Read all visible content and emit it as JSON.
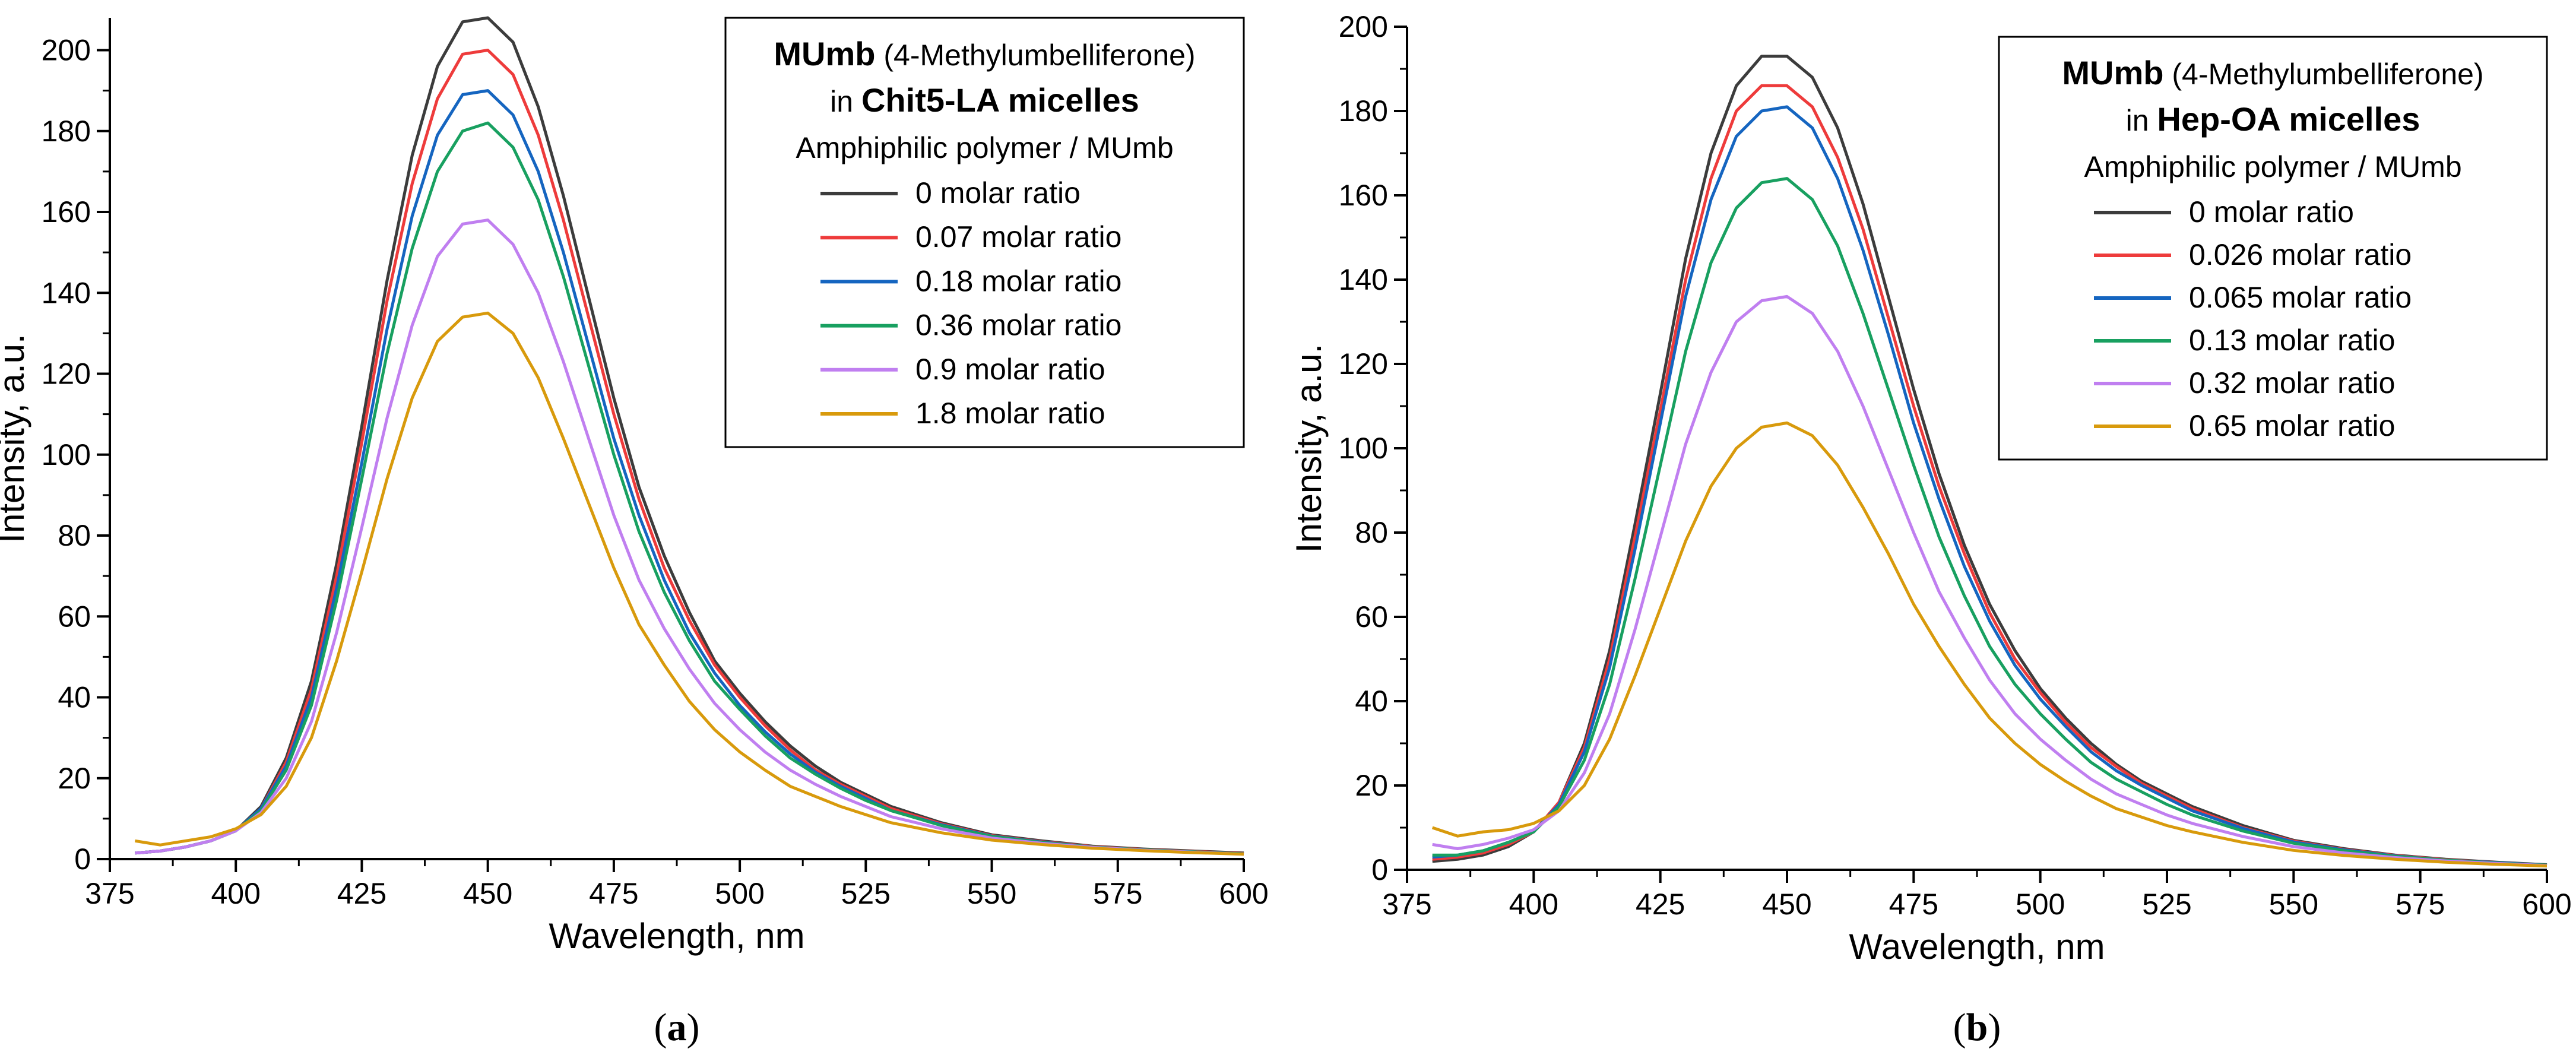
{
  "chart_data": [
    {
      "type": "line",
      "panel_label_prefix": "(",
      "panel_letter": "a",
      "panel_label_suffix": ")",
      "xlabel": "Wavelength, nm",
      "ylabel": "Intensity, a.u.",
      "xlim": [
        375,
        600
      ],
      "ylim": [
        0,
        208
      ],
      "xticks": [
        375,
        400,
        425,
        450,
        475,
        500,
        525,
        550,
        575,
        600
      ],
      "yticks": [
        0,
        20,
        40,
        60,
        80,
        100,
        120,
        140,
        160,
        180,
        200
      ],
      "grid": false,
      "legend": {
        "placement": "top-right",
        "title_bold": "MUmb",
        "title_rest": " (4-Methylumbelliferone)",
        "subtitle_prefix": "in ",
        "subtitle_bold": "Chit5-LA micelles",
        "header": "Amphiphilic polymer / MUmb"
      },
      "x": [
        380,
        385,
        390,
        395,
        400,
        405,
        410,
        415,
        420,
        425,
        430,
        435,
        440,
        445,
        450,
        455,
        460,
        465,
        470,
        475,
        480,
        485,
        490,
        495,
        500,
        505,
        510,
        515,
        520,
        525,
        530,
        540,
        550,
        560,
        570,
        580,
        590,
        600
      ],
      "series": [
        {
          "name": "0 molar ratio",
          "color": "#3c3c3c",
          "values": [
            1.5,
            2,
            3,
            4.5,
            7,
            13,
            25,
            44,
            73,
            107,
            143,
            174,
            196,
            207,
            208,
            202,
            186,
            164,
            139,
            114,
            92,
            75,
            61,
            49,
            41,
            34,
            28,
            23,
            19,
            16,
            13,
            9,
            6,
            4.5,
            3.2,
            2.5,
            2,
            1.5
          ]
        },
        {
          "name": "0.07 molar ratio",
          "color": "#ee3b3b",
          "values": [
            1.5,
            2,
            3,
            4.5,
            7,
            12.5,
            24,
            42,
            70,
            103,
            138,
            167,
            188,
            199,
            200,
            194,
            179,
            158,
            134,
            110,
            89,
            72,
            59,
            48,
            40,
            33,
            27,
            22,
            18.5,
            15.5,
            12.5,
            8.7,
            5.8,
            4.3,
            3.1,
            2.4,
            1.9,
            1.4
          ]
        },
        {
          "name": "0.18 molar ratio",
          "color": "#1565c0",
          "values": [
            1.5,
            2,
            3,
            4.5,
            7,
            12.5,
            23,
            40,
            67,
            98,
            131,
            159,
            179,
            189,
            190,
            184,
            170,
            150,
            127,
            104,
            85,
            69,
            56,
            46,
            38,
            31.5,
            26,
            21.5,
            18,
            15,
            12,
            8.5,
            5.7,
            4.2,
            3,
            2.3,
            1.8,
            1.3
          ]
        },
        {
          "name": "0.36 molar ratio",
          "color": "#18a060",
          "values": [
            1.5,
            2,
            3,
            4.5,
            7,
            12,
            22,
            38,
            64,
            94,
            125,
            151,
            170,
            180,
            182,
            176,
            163,
            144,
            122,
            100,
            81,
            66,
            54,
            44,
            37,
            30.5,
            25,
            21,
            17.5,
            14.5,
            12,
            8.3,
            5.6,
            4.1,
            3,
            2.3,
            1.8,
            1.3
          ]
        },
        {
          "name": "0.9 molar ratio",
          "color": "#c07ff0",
          "values": [
            1.5,
            2,
            3,
            4.5,
            7,
            11.5,
            20,
            34,
            56,
            82,
            109,
            132,
            149,
            157,
            158,
            152,
            140,
            123,
            104,
            85,
            69,
            57,
            47,
            38.5,
            32,
            26.5,
            22,
            18.5,
            15.5,
            13,
            10.5,
            7.5,
            5.2,
            3.9,
            2.9,
            2.2,
            1.7,
            1.2
          ]
        },
        {
          "name": "1.8 molar ratio",
          "color": "#d89a0c",
          "values": [
            4.5,
            3.5,
            4.5,
            5.5,
            7.5,
            11,
            18,
            30,
            49,
            71,
            94,
            114,
            128,
            134,
            135,
            130,
            119,
            104,
            88,
            72,
            58,
            48,
            39,
            32,
            26.5,
            22,
            18,
            15.5,
            13,
            11,
            9,
            6.5,
            4.7,
            3.6,
            2.7,
            2.1,
            1.6,
            1.2
          ]
        }
      ]
    },
    {
      "type": "line",
      "panel_label_prefix": "(",
      "panel_letter": "b",
      "panel_label_suffix": ")",
      "xlabel": "Wavelength, nm",
      "ylabel": "Intensity, a.u.",
      "xlim": [
        375,
        600
      ],
      "ylim": [
        0,
        200
      ],
      "xticks": [
        375,
        400,
        425,
        450,
        475,
        500,
        525,
        550,
        575,
        600
      ],
      "yticks": [
        0,
        20,
        40,
        60,
        80,
        100,
        120,
        140,
        160,
        180,
        200
      ],
      "grid": false,
      "legend": {
        "placement": "top-right",
        "title_bold": "MUmb",
        "title_rest": " (4-Methylumbelliferone)",
        "subtitle_prefix": "in ",
        "subtitle_bold": "Hep-OA micelles",
        "header": "Amphiphilic polymer / MUmb"
      },
      "x": [
        380,
        385,
        390,
        395,
        400,
        405,
        410,
        415,
        420,
        425,
        430,
        435,
        440,
        445,
        450,
        455,
        460,
        465,
        470,
        475,
        480,
        485,
        490,
        495,
        500,
        505,
        510,
        515,
        520,
        525,
        530,
        540,
        550,
        560,
        570,
        580,
        590,
        600
      ],
      "series": [
        {
          "name": "0 molar ratio",
          "color": "#3c3c3c",
          "values": [
            2,
            2.5,
            3.5,
            5.5,
            9,
            16,
            30,
            52,
            82,
            113,
            145,
            170,
            186,
            193,
            193,
            188,
            176,
            158,
            136,
            114,
            94,
            77,
            63,
            52,
            43,
            36,
            30,
            25,
            21,
            18,
            15,
            10.5,
            7,
            5,
            3.5,
            2.5,
            1.8,
            1.2
          ]
        },
        {
          "name": "0.026 molar ratio",
          "color": "#ee3b3b",
          "values": [
            2.5,
            3,
            4,
            6,
            9,
            16,
            29,
            50,
            79,
            109,
            140,
            164,
            180,
            186,
            186,
            181,
            169,
            152,
            131,
            110,
            91,
            75,
            61,
            50,
            42,
            35,
            29,
            24.5,
            20.5,
            17.5,
            14.5,
            10,
            6.8,
            4.8,
            3.4,
            2.4,
            1.7,
            1.1
          ]
        },
        {
          "name": "0.065 molar ratio",
          "color": "#1565c0",
          "values": [
            3,
            3.5,
            4.5,
            6.5,
            9,
            15.5,
            28,
            48,
            76,
            106,
            136,
            159,
            174,
            180,
            181,
            176,
            164,
            147,
            127,
            106,
            88,
            72,
            59,
            48.5,
            40.5,
            34,
            28,
            23.5,
            20,
            17,
            14,
            9.8,
            6.6,
            4.7,
            3.3,
            2.3,
            1.7,
            1.1
          ]
        },
        {
          "name": "0.13 molar ratio",
          "color": "#18a060",
          "values": [
            3.5,
            3.5,
            4.5,
            6.5,
            9,
            15,
            26,
            44,
            69,
            96,
            123,
            144,
            157,
            163,
            164,
            159,
            148,
            132,
            114,
            96,
            79,
            65,
            53,
            44,
            37,
            31,
            25.5,
            21.5,
            18.5,
            15.5,
            13,
            9.2,
            6.3,
            4.5,
            3.2,
            2.3,
            1.6,
            1.1
          ]
        },
        {
          "name": "0.32 molar ratio",
          "color": "#c07ff0",
          "values": [
            6,
            5,
            6,
            7.5,
            9.5,
            14,
            23,
            37,
            57,
            79,
            101,
            118,
            130,
            135,
            136,
            132,
            123,
            110,
            95,
            80,
            66,
            55,
            45,
            37,
            31,
            26,
            21.5,
            18,
            15.5,
            13,
            11,
            7.9,
            5.5,
            4,
            2.9,
            2.1,
            1.5,
            1
          ]
        },
        {
          "name": "0.65 molar ratio",
          "color": "#d89a0c",
          "values": [
            10,
            8,
            9,
            9.5,
            11,
            14,
            20,
            31,
            46,
            62,
            78,
            91,
            100,
            105,
            106,
            103,
            96,
            86,
            75,
            63,
            53,
            44,
            36,
            30,
            25,
            21,
            17.5,
            14.5,
            12.5,
            10.5,
            9,
            6.5,
            4.6,
            3.4,
            2.5,
            1.8,
            1.3,
            0.9
          ]
        }
      ]
    }
  ]
}
